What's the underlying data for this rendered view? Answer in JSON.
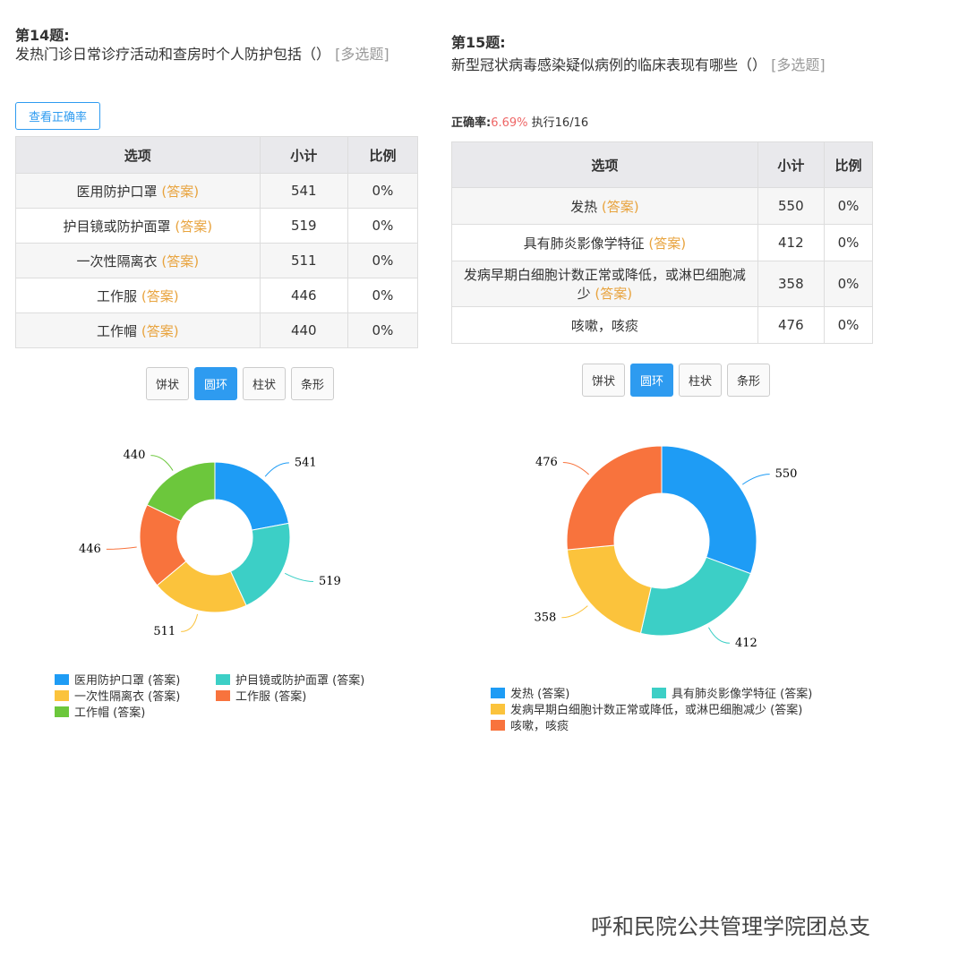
{
  "questions": [
    {
      "number": "第14题:",
      "text": "发热门诊日常诊疗活动和查房时个人防护包括（）",
      "tag": "[多选题]",
      "button": "查看正确率",
      "header": [
        "选项",
        "小计",
        "比例"
      ],
      "rows": [
        [
          "医用防护口罩",
          "(答案)",
          541,
          "0%"
        ],
        [
          "护目镜或防护面罩",
          "(答案)",
          519,
          "0%"
        ],
        [
          "一次性隔离衣",
          "(答案)",
          511,
          "0%"
        ],
        [
          "工作服",
          "(答案)",
          446,
          "0%"
        ],
        [
          "工作帽",
          "(答案)",
          440,
          "0%"
        ]
      ],
      "chart_buttons": [
        "饼状",
        "圆环",
        "柱状",
        "条形"
      ]
    },
    {
      "number": "第15题:",
      "text": "新型冠状病毒感染疑似病例的临床表现有哪些（）",
      "tag": "[多选题]",
      "accuracy_label": "正确率:",
      "accuracy": "6.69%",
      "progress": "执行16/16",
      "header": [
        "选项",
        "小计",
        "比例"
      ],
      "rows": [
        [
          "发热",
          "(答案)",
          550,
          "0%"
        ],
        [
          "具有肺炎影像学特征",
          "(答案)",
          412,
          "0%"
        ],
        [
          "发病早期白细胞计数正常或降低，或淋巴细胞减少",
          "(答案)",
          358,
          "0%"
        ],
        [
          "咳嗽，咳痰",
          null,
          476,
          "0%"
        ]
      ],
      "chart_buttons": [
        "饼状",
        "圆环",
        "柱状",
        "条形"
      ]
    }
  ],
  "chart_data": [
    {
      "type": "donut",
      "categories": [
        "医用防护口罩 (答案)",
        "护目镜或防护面罩 (答案)",
        "一次性隔离衣 (答案)",
        "工作服 (答案)",
        "工作帽 (答案)"
      ],
      "values": [
        541,
        519,
        511,
        446,
        440
      ],
      "colors": [
        "#1e9cf5",
        "#3ccfc6",
        "#fbc33c",
        "#f8733d",
        "#6cc73c"
      ]
    },
    {
      "type": "donut",
      "categories": [
        "发热 (答案)",
        "具有肺炎影像学特征 (答案)",
        "发病早期白细胞计数正常或降低，或淋巴细胞减少 (答案)",
        "咳嗽，咳痰"
      ],
      "values": [
        550,
        412,
        358,
        476
      ],
      "colors": [
        "#1e9cf5",
        "#3ccfc6",
        "#fbc33c",
        "#f8733d"
      ]
    }
  ],
  "watermark": "呼和民院公共管理学院团总支"
}
